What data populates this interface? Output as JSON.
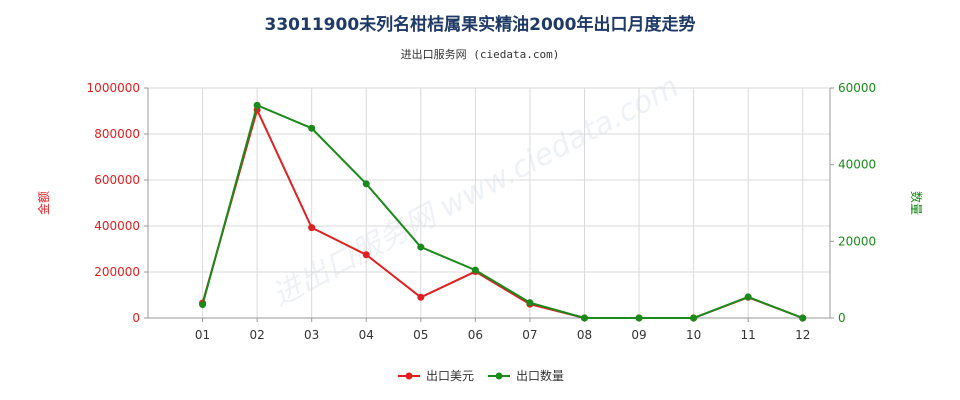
{
  "chart_data": {
    "type": "line",
    "title": "33011900未列名柑桔属果实精油2000年出口月度走势",
    "subtitle": "进出口服务网 (ciedata.com)",
    "watermark": "进出口服务网 www.ciedata.com",
    "categories": [
      "01",
      "02",
      "03",
      "04",
      "05",
      "06",
      "07",
      "08",
      "09",
      "10",
      "11",
      "12"
    ],
    "y_left": {
      "label": "金额",
      "range": [
        0,
        1000000
      ],
      "ticks": [
        "0",
        "200000",
        "400000",
        "600000",
        "800000",
        "1000000"
      ],
      "color": "#e02020"
    },
    "y_right": {
      "label": "数量",
      "range": [
        0,
        60000
      ],
      "ticks": [
        "0",
        "20000",
        "40000",
        "60000"
      ],
      "color": "#1a8a1a"
    },
    "grid": true,
    "legend_position": "bottom-center",
    "series": [
      {
        "name": "出口美元",
        "axis": "left",
        "color": "#e02020",
        "values": [
          65000,
          905000,
          393000,
          275000,
          90000,
          202000,
          60000,
          0,
          0,
          0,
          90000,
          0
        ]
      },
      {
        "name": "出口数量",
        "axis": "right",
        "color": "#1a8a1a",
        "values": [
          3500,
          55500,
          49500,
          35000,
          18500,
          12500,
          4000,
          0,
          0,
          0,
          5500,
          0
        ]
      }
    ]
  }
}
